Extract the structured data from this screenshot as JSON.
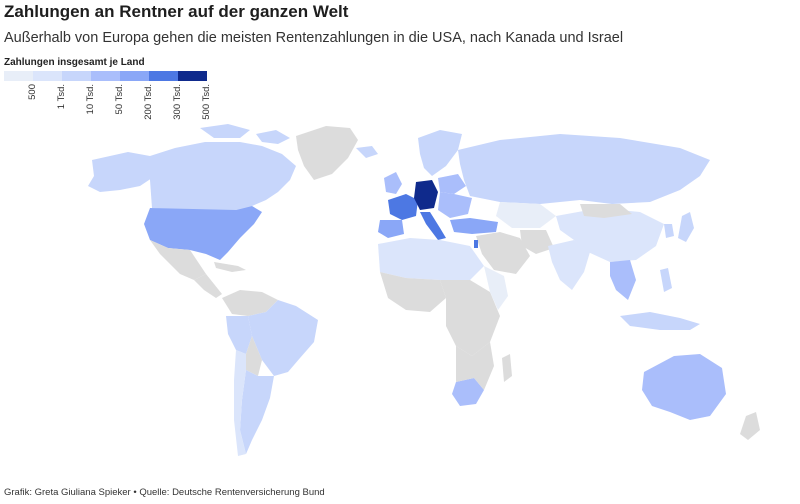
{
  "header": {
    "title": "Zahlungen an Rentner auf der ganzen Welt",
    "subtitle": "Außerhalb von Europa gehen die meisten Rentenzahlungen in die USA, nach Kanada und Israel"
  },
  "legend": {
    "title": "Zahlungen insgesamt je Land",
    "colors": [
      "#e8eef8",
      "#dbe5fb",
      "#c7d6fb",
      "#aabefb",
      "#8aa7f7",
      "#4d78e3",
      "#0f2a8c"
    ],
    "ticks": [
      "500",
      "1 Tsd.",
      "10 Tsd.",
      "50 Tsd.",
      "200 Tsd.",
      "300 Tsd.",
      "500 Tsd."
    ]
  },
  "footer": {
    "credit": "Grafik: Greta Giuliana Spieker • Quelle: Deutsche Rentenversicherung Bund"
  }
}
